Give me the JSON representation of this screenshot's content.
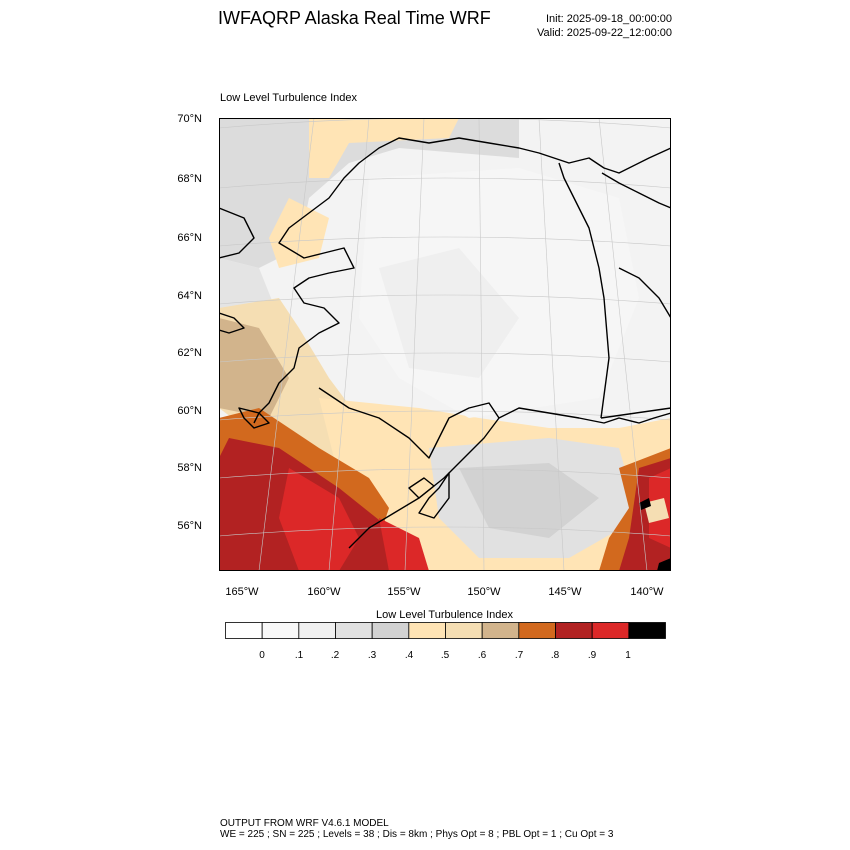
{
  "header": {
    "title": "IWFAQRP Alaska Real Time WRF",
    "init": "Init: 2025-09-18_00:00:00",
    "valid": "Valid: 2025-09-22_12:00:00"
  },
  "map": {
    "field_label": "Low Level Turbulence Index",
    "lat_labels": [
      "70°N",
      "68°N",
      "66°N",
      "64°N",
      "62°N",
      "60°N",
      "58°N",
      "56°N"
    ],
    "lon_labels": [
      "165°W",
      "160°W",
      "155°W",
      "150°W",
      "145°W",
      "140°W"
    ]
  },
  "colorbar": {
    "title": "Low Level Turbulence Index",
    "tick_labels": [
      "0",
      ".1",
      ".2",
      ".3",
      ".4",
      ".5",
      ".6",
      ".7",
      ".8",
      ".9",
      "1"
    ],
    "colors": [
      "#ffffff",
      "#f8f8f8",
      "#f0f0f0",
      "#e1e1e1",
      "#d2d2d2",
      "#ffe4b5",
      "#f5deb3",
      "#d2b48c",
      "#d2691e",
      "#b22222",
      "#dc2828",
      "#000000"
    ]
  },
  "footer": {
    "line1": "OUTPUT FROM WRF V4.6.1 MODEL",
    "line2": "WE = 225 ; SN = 225 ; Levels = 38 ; Dis = 8km ; Phys Opt = 8 ; PBL Opt = 1 ; Cu Opt = 3"
  }
}
